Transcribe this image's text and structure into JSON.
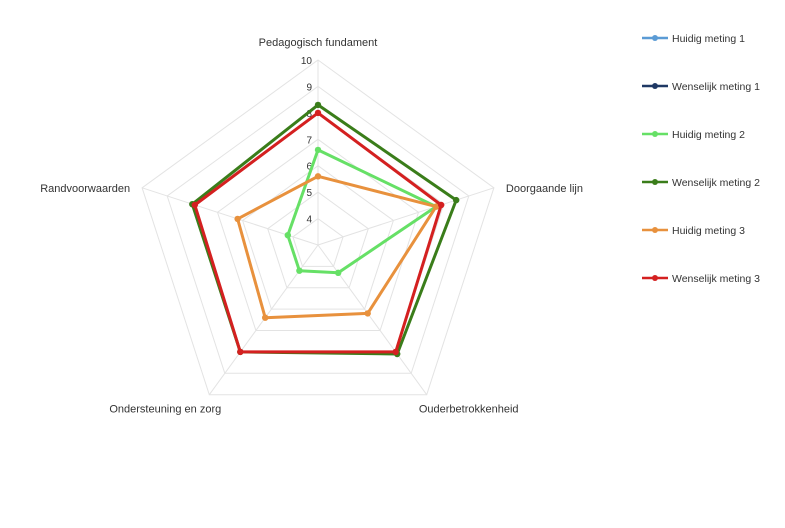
{
  "chart_data": {
    "type": "radar",
    "axes": [
      "Pedagogisch fundament",
      "Doorgaande lijn",
      "Ouderbetrokkenheid",
      "Ondersteuning en zorg",
      "Randvoorwaarden"
    ],
    "rlim": [
      3,
      10
    ],
    "ticks": [
      4,
      5,
      6,
      7,
      8,
      9,
      10
    ],
    "grid": true,
    "legend_position": "right",
    "series": [
      {
        "name": "Huidig meting 1",
        "color": "#5b9bd5",
        "values": [
          null,
          null,
          null,
          null,
          null
        ]
      },
      {
        "name": "Wenselijk meting 1",
        "color": "#1f3864",
        "values": [
          null,
          null,
          null,
          null,
          null
        ]
      },
      {
        "name": "Huidig meting 2",
        "color": "#66e066",
        "values": [
          6.6,
          7.7,
          4.3,
          4.2,
          4.2
        ]
      },
      {
        "name": "Wenselijk meting 2",
        "color": "#3a7d1a",
        "values": [
          8.3,
          8.5,
          8.1,
          8.0,
          8.0
        ]
      },
      {
        "name": "Huidig meting 3",
        "color": "#e8913d",
        "values": [
          5.6,
          7.7,
          6.2,
          6.4,
          6.2
        ]
      },
      {
        "name": "Wenselijk meting 3",
        "color": "#d42020",
        "values": [
          8.0,
          7.9,
          8.0,
          8.0,
          7.9
        ]
      }
    ]
  }
}
